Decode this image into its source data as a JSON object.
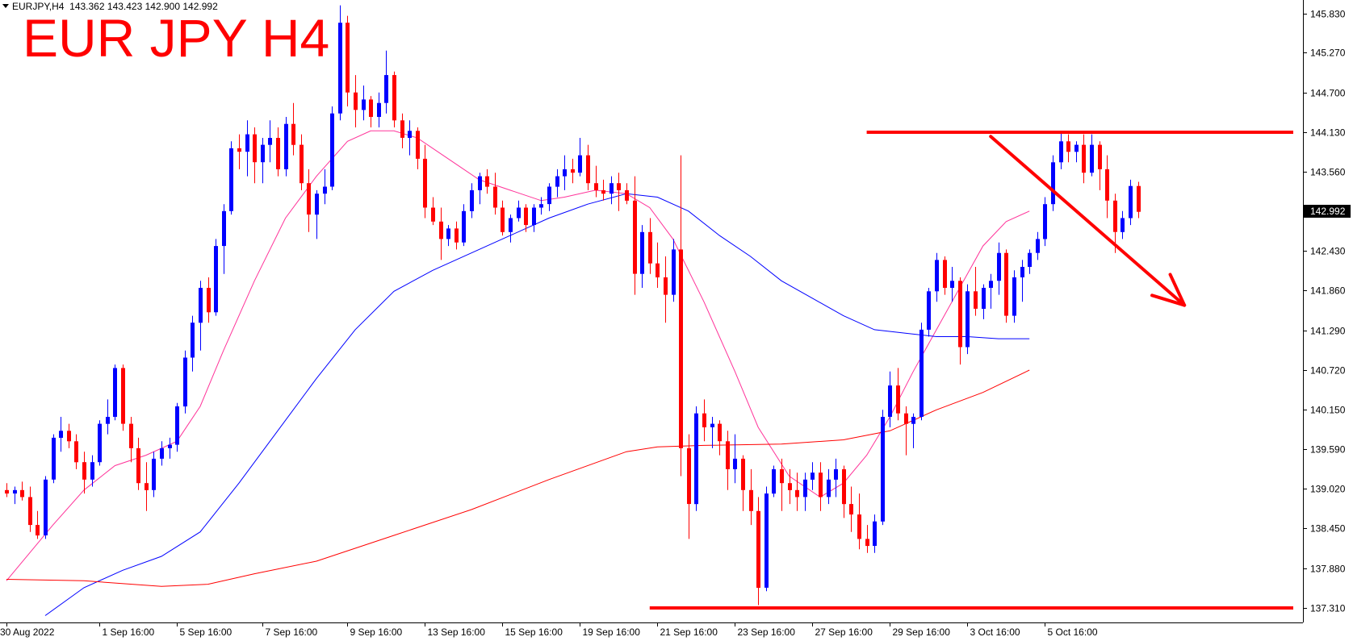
{
  "header": {
    "symbol": "EURJPY,H4",
    "open": "143.362",
    "high": "143.423",
    "low": "142.900",
    "close": "142.992"
  },
  "annotation_title": "EUR JPY H4",
  "colors": {
    "bull": "#0000ff",
    "bear": "#ff0000",
    "ma_fast": "#ff3399",
    "ma_mid": "#0000ff",
    "ma_slow": "#ff0000",
    "annotation": "#ff0000",
    "current_price_box": "#000000"
  },
  "chart_data": {
    "type": "candlestick",
    "ylim": [
      137.1,
      146.0
    ],
    "price_ticks": [
      "145.830",
      "145.270",
      "144.700",
      "144.130",
      "143.560",
      "142.992",
      "142.430",
      "141.860",
      "141.290",
      "140.720",
      "140.150",
      "139.590",
      "139.020",
      "138.450",
      "137.880",
      "137.310"
    ],
    "current_price": "142.992",
    "time_labels": [
      "30 Aug 2022",
      "1 Sep 16:00",
      "5 Sep 16:00",
      "7 Sep 16:00",
      "9 Sep 16:00",
      "13 Sep 16:00",
      "15 Sep 16:00",
      "19 Sep 16:00",
      "21 Sep 16:00",
      "23 Sep 16:00",
      "27 Sep 16:00",
      "29 Sep 16:00",
      "3 Oct 16:00",
      "5 Oct 16:00"
    ],
    "time_label_bars": [
      0,
      12,
      22,
      33,
      44,
      54,
      64,
      74,
      84,
      94,
      104,
      114,
      124,
      134
    ],
    "candles": [
      [
        139.0,
        139.1,
        138.9,
        138.95
      ],
      [
        138.95,
        139.05,
        138.8,
        139.0
      ],
      [
        139.0,
        139.12,
        138.85,
        138.9
      ],
      [
        138.9,
        139.05,
        138.4,
        138.5
      ],
      [
        138.5,
        138.7,
        138.3,
        138.35
      ],
      [
        138.35,
        139.2,
        138.3,
        139.15
      ],
      [
        139.15,
        139.8,
        139.1,
        139.75
      ],
      [
        139.75,
        140.05,
        139.55,
        139.85
      ],
      [
        139.85,
        139.95,
        139.6,
        139.7
      ],
      [
        139.7,
        139.8,
        139.3,
        139.4
      ],
      [
        139.4,
        139.55,
        138.95,
        139.15
      ],
      [
        139.15,
        139.5,
        139.05,
        139.4
      ],
      [
        139.4,
        140.0,
        139.35,
        139.95
      ],
      [
        139.95,
        140.3,
        139.8,
        140.05
      ],
      [
        140.05,
        140.8,
        140.0,
        140.75
      ],
      [
        140.75,
        140.8,
        139.85,
        139.95
      ],
      [
        139.95,
        140.05,
        139.4,
        139.6
      ],
      [
        139.6,
        139.75,
        139.0,
        139.1
      ],
      [
        139.1,
        139.4,
        138.7,
        139.0
      ],
      [
        139.0,
        139.55,
        138.9,
        139.45
      ],
      [
        139.45,
        139.7,
        139.35,
        139.6
      ],
      [
        139.6,
        139.75,
        139.45,
        139.65
      ],
      [
        139.65,
        140.25,
        139.55,
        140.2
      ],
      [
        140.2,
        141.0,
        140.1,
        140.9
      ],
      [
        140.9,
        141.5,
        140.7,
        141.4
      ],
      [
        141.4,
        142.0,
        141.0,
        141.9
      ],
      [
        141.9,
        142.05,
        141.4,
        141.55
      ],
      [
        141.55,
        142.6,
        141.5,
        142.5
      ],
      [
        142.5,
        143.1,
        142.1,
        143.0
      ],
      [
        143.0,
        144.0,
        142.95,
        143.9
      ],
      [
        143.9,
        144.1,
        143.6,
        143.85
      ],
      [
        143.85,
        144.3,
        143.5,
        144.1
      ],
      [
        144.1,
        144.2,
        143.4,
        143.7
      ],
      [
        143.7,
        144.05,
        143.4,
        143.95
      ],
      [
        143.95,
        144.3,
        143.7,
        144.05
      ],
      [
        144.05,
        144.2,
        143.5,
        143.6
      ],
      [
        143.6,
        144.35,
        143.5,
        144.25
      ],
      [
        144.25,
        144.55,
        143.8,
        143.95
      ],
      [
        143.95,
        144.1,
        143.3,
        143.4
      ],
      [
        143.4,
        143.6,
        142.7,
        142.95
      ],
      [
        142.95,
        143.3,
        142.6,
        143.25
      ],
      [
        143.25,
        143.6,
        143.1,
        143.35
      ],
      [
        143.35,
        144.5,
        143.3,
        144.4
      ],
      [
        144.4,
        145.95,
        144.3,
        145.7
      ],
      [
        145.7,
        145.8,
        144.5,
        144.7
      ],
      [
        144.7,
        144.95,
        144.2,
        144.45
      ],
      [
        144.45,
        144.8,
        144.3,
        144.6
      ],
      [
        144.6,
        144.65,
        144.2,
        144.35
      ],
      [
        144.35,
        144.7,
        144.2,
        144.55
      ],
      [
        144.55,
        145.3,
        144.4,
        144.95
      ],
      [
        144.95,
        145.0,
        144.2,
        144.3
      ],
      [
        144.3,
        144.4,
        143.9,
        144.05
      ],
      [
        144.05,
        144.3,
        143.8,
        144.15
      ],
      [
        144.15,
        144.2,
        143.6,
        143.75
      ],
      [
        143.75,
        143.95,
        142.9,
        143.05
      ],
      [
        143.05,
        143.2,
        142.8,
        142.85
      ],
      [
        142.85,
        143.05,
        142.3,
        142.6
      ],
      [
        142.6,
        142.8,
        142.5,
        142.75
      ],
      [
        142.75,
        142.85,
        142.45,
        142.55
      ],
      [
        142.55,
        143.1,
        142.5,
        143.0
      ],
      [
        143.0,
        143.4,
        142.9,
        143.3
      ],
      [
        143.3,
        143.55,
        143.1,
        143.5
      ],
      [
        143.5,
        143.6,
        143.25,
        143.35
      ],
      [
        143.35,
        143.55,
        142.95,
        143.05
      ],
      [
        143.05,
        143.15,
        142.65,
        142.7
      ],
      [
        142.7,
        142.95,
        142.55,
        142.9
      ],
      [
        142.9,
        143.15,
        142.85,
        143.05
      ],
      [
        143.05,
        143.1,
        142.7,
        142.8
      ],
      [
        142.8,
        143.1,
        142.7,
        143.05
      ],
      [
        143.05,
        143.2,
        142.95,
        143.1
      ],
      [
        143.1,
        143.4,
        143.0,
        143.35
      ],
      [
        143.35,
        143.6,
        143.2,
        143.5
      ],
      [
        143.5,
        143.8,
        143.3,
        143.6
      ],
      [
        143.6,
        143.75,
        143.4,
        143.55
      ],
      [
        143.55,
        144.05,
        143.5,
        143.8
      ],
      [
        143.8,
        143.95,
        143.3,
        143.4
      ],
      [
        143.4,
        143.65,
        143.2,
        143.3
      ],
      [
        143.3,
        143.45,
        143.15,
        143.25
      ],
      [
        143.25,
        143.5,
        143.1,
        143.4
      ],
      [
        143.4,
        143.55,
        143.0,
        143.3
      ],
      [
        143.3,
        143.4,
        143.1,
        143.15
      ],
      [
        143.15,
        143.5,
        141.8,
        142.1
      ],
      [
        142.1,
        142.8,
        141.9,
        142.7
      ],
      [
        142.7,
        142.9,
        142.1,
        142.25
      ],
      [
        142.25,
        142.55,
        141.9,
        142.05
      ],
      [
        142.05,
        142.35,
        141.4,
        141.8
      ],
      [
        141.8,
        142.6,
        141.7,
        142.45
      ],
      [
        142.45,
        143.8,
        139.2,
        139.6
      ],
      [
        139.6,
        139.8,
        138.3,
        138.8
      ],
      [
        138.8,
        140.2,
        138.7,
        140.1
      ],
      [
        140.1,
        140.3,
        139.7,
        139.9
      ],
      [
        139.9,
        140.05,
        139.6,
        139.95
      ],
      [
        139.95,
        140.0,
        139.5,
        139.7
      ],
      [
        139.7,
        139.85,
        139.0,
        139.3
      ],
      [
        139.3,
        139.8,
        139.1,
        139.45
      ],
      [
        139.45,
        139.5,
        138.7,
        139.0
      ],
      [
        139.0,
        139.3,
        138.5,
        138.7
      ],
      [
        138.7,
        138.9,
        137.35,
        137.6
      ],
      [
        137.6,
        139.05,
        137.55,
        138.95
      ],
      [
        138.95,
        139.35,
        138.9,
        139.3
      ],
      [
        139.3,
        139.45,
        138.7,
        139.1
      ],
      [
        139.1,
        139.3,
        138.8,
        139.0
      ],
      [
        139.0,
        139.25,
        138.7,
        138.9
      ],
      [
        138.9,
        139.25,
        138.7,
        139.15
      ],
      [
        139.15,
        139.4,
        139.0,
        139.25
      ],
      [
        139.25,
        139.4,
        138.7,
        138.9
      ],
      [
        138.9,
        139.3,
        138.8,
        139.15
      ],
      [
        139.15,
        139.45,
        138.9,
        139.3
      ],
      [
        139.3,
        139.35,
        138.6,
        138.8
      ],
      [
        138.8,
        139.05,
        138.4,
        138.65
      ],
      [
        138.65,
        138.95,
        138.15,
        138.3
      ],
      [
        138.3,
        138.5,
        138.1,
        138.2
      ],
      [
        138.2,
        138.65,
        138.1,
        138.55
      ],
      [
        138.55,
        140.15,
        138.5,
        140.05
      ],
      [
        140.05,
        140.7,
        139.9,
        140.5
      ],
      [
        140.5,
        140.75,
        140.0,
        140.1
      ],
      [
        140.1,
        140.2,
        139.5,
        139.95
      ],
      [
        139.95,
        140.1,
        139.6,
        140.05
      ],
      [
        140.05,
        141.4,
        140.0,
        141.3
      ],
      [
        141.3,
        141.9,
        141.2,
        141.85
      ],
      [
        141.85,
        142.4,
        141.7,
        142.3
      ],
      [
        142.3,
        142.35,
        141.8,
        141.9
      ],
      [
        141.9,
        142.2,
        141.7,
        142.0
      ],
      [
        142.0,
        142.05,
        140.8,
        141.05
      ],
      [
        141.05,
        141.95,
        140.95,
        141.85
      ],
      [
        141.85,
        142.2,
        141.5,
        141.6
      ],
      [
        141.6,
        141.95,
        141.45,
        141.9
      ],
      [
        141.9,
        142.1,
        141.6,
        142.0
      ],
      [
        142.0,
        142.55,
        141.8,
        142.4
      ],
      [
        142.4,
        142.45,
        141.4,
        141.5
      ],
      [
        141.5,
        142.15,
        141.4,
        142.05
      ],
      [
        142.05,
        142.3,
        141.7,
        142.2
      ],
      [
        142.2,
        142.45,
        142.1,
        142.4
      ],
      [
        142.4,
        142.7,
        142.3,
        142.6
      ],
      [
        142.6,
        143.2,
        142.5,
        143.1
      ],
      [
        143.1,
        143.8,
        143.0,
        143.7
      ],
      [
        143.7,
        144.15,
        143.6,
        144.0
      ],
      [
        144.0,
        144.1,
        143.7,
        143.85
      ],
      [
        143.85,
        144.0,
        143.7,
        143.95
      ],
      [
        143.95,
        144.1,
        143.4,
        143.55
      ],
      [
        143.55,
        144.1,
        143.5,
        143.95
      ],
      [
        143.95,
        144.0,
        143.3,
        143.6
      ],
      [
        143.6,
        143.8,
        142.9,
        143.15
      ],
      [
        143.15,
        143.25,
        142.4,
        142.7
      ],
      [
        142.7,
        143.0,
        142.6,
        142.9
      ],
      [
        142.9,
        143.45,
        142.8,
        143.36
      ],
      [
        143.36,
        143.42,
        142.9,
        142.99
      ]
    ],
    "moving_averages": [
      {
        "color": "#ff3399",
        "points": [
          [
            0,
            137.7
          ],
          [
            6,
            138.5
          ],
          [
            10,
            139.0
          ],
          [
            14,
            139.35
          ],
          [
            18,
            139.5
          ],
          [
            22,
            139.7
          ],
          [
            25,
            140.2
          ],
          [
            28,
            141.0
          ],
          [
            32,
            142.0
          ],
          [
            36,
            142.9
          ],
          [
            40,
            143.5
          ],
          [
            44,
            144.0
          ],
          [
            47,
            144.15
          ],
          [
            50,
            144.15
          ],
          [
            53,
            144.05
          ],
          [
            57,
            143.75
          ],
          [
            61,
            143.45
          ],
          [
            65,
            143.3
          ],
          [
            69,
            143.15
          ],
          [
            72,
            143.2
          ],
          [
            76,
            143.3
          ],
          [
            80,
            143.25
          ],
          [
            83,
            143.05
          ],
          [
            86,
            142.6
          ],
          [
            90,
            141.7
          ],
          [
            94,
            140.7
          ],
          [
            97,
            139.9
          ],
          [
            101,
            139.2
          ],
          [
            105,
            138.9
          ],
          [
            108,
            139.1
          ],
          [
            111,
            139.5
          ],
          [
            114,
            140.05
          ],
          [
            117,
            140.7
          ],
          [
            120,
            141.3
          ],
          [
            123,
            141.9
          ],
          [
            126,
            142.5
          ],
          [
            129,
            142.85
          ],
          [
            132,
            143.0
          ]
        ]
      },
      {
        "color": "#0000ff",
        "points": [
          [
            5,
            137.2
          ],
          [
            10,
            137.6
          ],
          [
            15,
            137.85
          ],
          [
            20,
            138.05
          ],
          [
            25,
            138.4
          ],
          [
            30,
            139.1
          ],
          [
            35,
            139.85
          ],
          [
            40,
            140.6
          ],
          [
            45,
            141.3
          ],
          [
            50,
            141.85
          ],
          [
            55,
            142.15
          ],
          [
            60,
            142.4
          ],
          [
            65,
            142.65
          ],
          [
            70,
            142.9
          ],
          [
            75,
            143.1
          ],
          [
            80,
            143.25
          ],
          [
            84,
            143.2
          ],
          [
            88,
            143.0
          ],
          [
            92,
            142.65
          ],
          [
            96,
            142.35
          ],
          [
            100,
            142.0
          ],
          [
            104,
            141.75
          ],
          [
            108,
            141.5
          ],
          [
            112,
            141.3
          ],
          [
            116,
            141.25
          ],
          [
            120,
            141.2
          ],
          [
            124,
            141.2
          ],
          [
            128,
            141.17
          ],
          [
            132,
            141.17
          ]
        ]
      },
      {
        "color": "#ff0000",
        "points": [
          [
            0,
            137.72
          ],
          [
            10,
            137.7
          ],
          [
            20,
            137.62
          ],
          [
            26,
            137.65
          ],
          [
            32,
            137.8
          ],
          [
            40,
            137.98
          ],
          [
            50,
            138.35
          ],
          [
            60,
            138.72
          ],
          [
            70,
            139.15
          ],
          [
            80,
            139.55
          ],
          [
            84,
            139.62
          ],
          [
            90,
            139.64
          ],
          [
            100,
            139.66
          ],
          [
            108,
            139.72
          ],
          [
            114,
            139.85
          ],
          [
            120,
            140.15
          ],
          [
            126,
            140.4
          ],
          [
            132,
            140.72
          ]
        ]
      }
    ],
    "resistance_line": {
      "price": 144.13,
      "from_bar": 111,
      "to_bar": 150
    },
    "support_line": {
      "price": 137.31,
      "from_bar": 83,
      "to_bar": 150
    },
    "trend_arrow": {
      "from": [
        127,
        144.07
      ],
      "to": [
        152,
        141.65
      ]
    }
  }
}
